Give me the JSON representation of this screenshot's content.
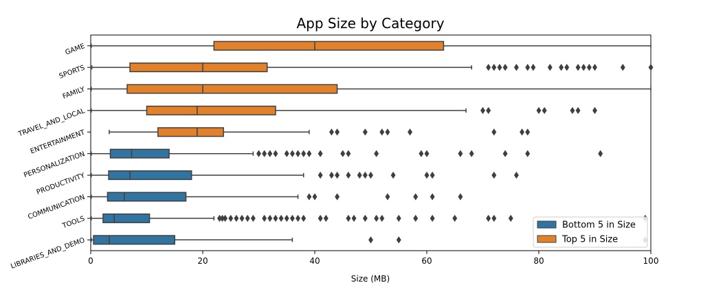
{
  "chart_data": {
    "type": "boxplot",
    "title": "App Size by Category",
    "xlabel": "Size (MB)",
    "ylabel": "",
    "xlim": [
      0,
      100
    ],
    "xticks": [
      0,
      20,
      40,
      60,
      80,
      100
    ],
    "grid": false,
    "legend": {
      "placement": "bottom-right",
      "entries": [
        {
          "label": "Bottom 5 in Size",
          "color": "#3274a1"
        },
        {
          "label": "Top 5 in Size",
          "color": "#e1812c"
        }
      ]
    },
    "categories": [
      {
        "name": "GAME",
        "group": "top",
        "whisker_low": 0.1,
        "q1": 22,
        "median": 40,
        "q3": 63,
        "whisker_high": 100,
        "outliers": []
      },
      {
        "name": "SPORTS",
        "group": "top",
        "whisker_low": 0.2,
        "q1": 7,
        "median": 20,
        "q3": 31.5,
        "whisker_high": 68,
        "outliers": [
          71,
          72,
          73,
          74,
          76,
          78,
          79,
          82,
          84,
          85,
          87,
          88,
          89,
          90,
          95,
          100
        ]
      },
      {
        "name": "FAMILY",
        "group": "top",
        "whisker_low": 0.1,
        "q1": 6.5,
        "median": 20,
        "q3": 44,
        "whisker_high": 100,
        "outliers": []
      },
      {
        "name": "TRAVEL_AND_LOCAL",
        "group": "top",
        "whisker_low": 0.1,
        "q1": 10,
        "median": 19,
        "q3": 33,
        "whisker_high": 67,
        "outliers": [
          70,
          71,
          80,
          81,
          86,
          87,
          90
        ]
      },
      {
        "name": "ENTERTAINMENT",
        "group": "top",
        "whisker_low": 3.3,
        "q1": 12,
        "median": 19,
        "q3": 23.7,
        "whisker_high": 39,
        "outliers": [
          43,
          44,
          49,
          52,
          53,
          57,
          72,
          77,
          78
        ]
      },
      {
        "name": "PERSONALIZATION",
        "group": "bottom",
        "whisker_low": 0.1,
        "q1": 3.5,
        "median": 7.3,
        "q3": 14,
        "whisker_high": 29,
        "outliers": [
          30,
          31,
          32,
          33,
          35,
          36,
          37,
          38,
          39,
          41,
          45,
          46,
          51,
          59,
          60,
          66,
          68,
          74,
          78,
          91
        ]
      },
      {
        "name": "PRODUCTIVITY",
        "group": "bottom",
        "whisker_low": 0.1,
        "q1": 3.2,
        "median": 7,
        "q3": 18,
        "whisker_high": 38,
        "outliers": [
          41,
          43,
          44,
          46,
          48,
          49,
          50,
          54,
          60,
          61,
          72,
          76
        ]
      },
      {
        "name": "COMMUNICATION",
        "group": "bottom",
        "whisker_low": 0.1,
        "q1": 3,
        "median": 6,
        "q3": 17,
        "whisker_high": 37,
        "outliers": [
          39,
          40,
          44,
          53,
          58,
          61,
          66
        ]
      },
      {
        "name": "TOOLS",
        "group": "bottom",
        "whisker_low": 0.1,
        "q1": 2.2,
        "median": 4.2,
        "q3": 10.5,
        "whisker_high": 22,
        "outliers": [
          23,
          23.5,
          24,
          25,
          26,
          27,
          28,
          29,
          31,
          32,
          33,
          34,
          35,
          36,
          37,
          38,
          41,
          42,
          46,
          47,
          49,
          51,
          52,
          55,
          58,
          61,
          65,
          71,
          72,
          75,
          99
        ]
      },
      {
        "name": "LIBRARIES_AND_DEMO",
        "group": "bottom",
        "whisker_low": 0.1,
        "q1": 0.5,
        "median": 3.3,
        "q3": 15,
        "whisker_high": 36,
        "outliers": [
          50,
          55,
          99
        ]
      }
    ]
  }
}
